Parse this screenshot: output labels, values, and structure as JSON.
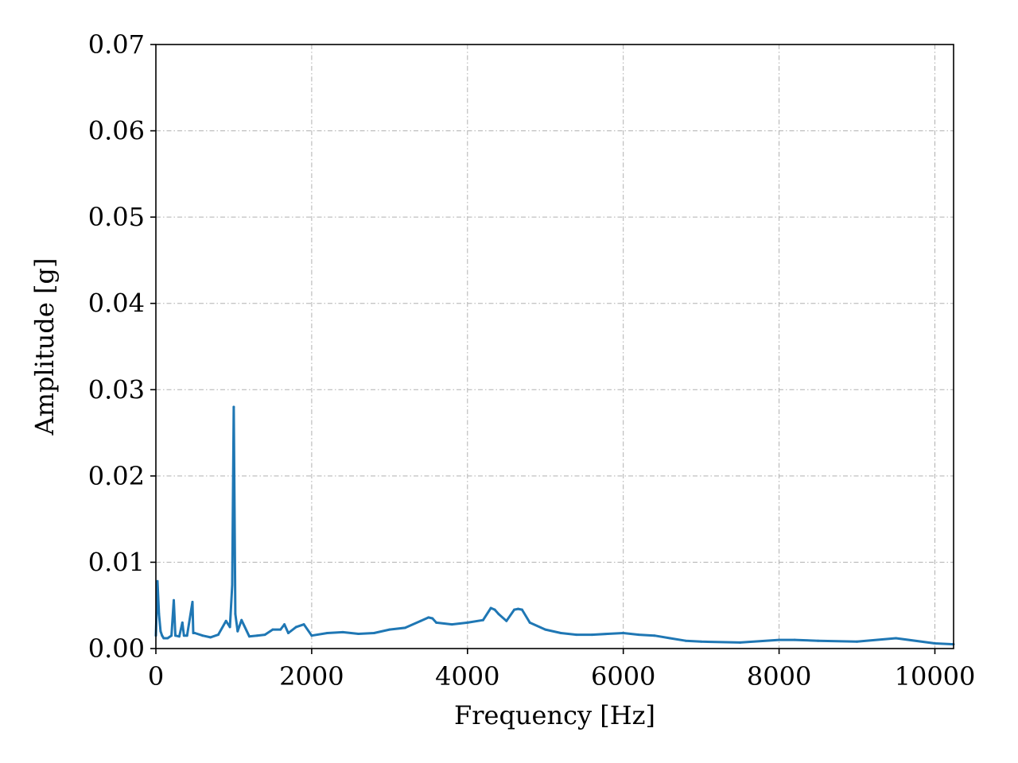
{
  "chart_data": {
    "type": "line",
    "title": "",
    "xlabel": "Frequency [Hz]",
    "ylabel": "Amplitude [g]",
    "xlim": [
      0,
      10240
    ],
    "ylim": [
      0,
      0.07
    ],
    "x_ticks": [
      0,
      2000,
      4000,
      6000,
      8000,
      10000
    ],
    "x_tick_labels": [
      "0",
      "2000",
      "4000",
      "6000",
      "8000",
      "10000"
    ],
    "y_ticks": [
      0,
      0.01,
      0.02,
      0.03,
      0.04,
      0.05,
      0.06,
      0.07
    ],
    "y_tick_labels": [
      "0.00",
      "0.01",
      "0.02",
      "0.03",
      "0.04",
      "0.05",
      "0.06",
      "0.07"
    ],
    "grid": true,
    "legend": "none",
    "colors": {
      "series": "#1f77b4",
      "grid": "#b0b0b0",
      "axes": "#000000"
    },
    "series": [
      {
        "name": "",
        "x": [
          0,
          20,
          40,
          60,
          80,
          100,
          150,
          200,
          230,
          250,
          300,
          340,
          360,
          400,
          470,
          480,
          500,
          600,
          700,
          800,
          900,
          950,
          980,
          1000,
          1020,
          1050,
          1100,
          1200,
          1300,
          1400,
          1500,
          1600,
          1650,
          1700,
          1800,
          1900,
          2000,
          2200,
          2400,
          2600,
          2800,
          3000,
          3200,
          3400,
          3500,
          3550,
          3600,
          3800,
          4000,
          4200,
          4300,
          4350,
          4400,
          4500,
          4600,
          4650,
          4700,
          4800,
          5000,
          5200,
          5400,
          5600,
          5800,
          6000,
          6200,
          6400,
          6600,
          6800,
          7000,
          7500,
          8000,
          8200,
          8500,
          9000,
          9500,
          10000,
          10240
        ],
        "y": [
          0.0015,
          0.0078,
          0.004,
          0.002,
          0.0015,
          0.0012,
          0.0012,
          0.0015,
          0.0056,
          0.0015,
          0.0014,
          0.003,
          0.0015,
          0.0015,
          0.0054,
          0.0018,
          0.0018,
          0.0015,
          0.0013,
          0.0016,
          0.0032,
          0.0025,
          0.0074,
          0.028,
          0.004,
          0.002,
          0.0033,
          0.0014,
          0.0015,
          0.0016,
          0.0022,
          0.0022,
          0.0028,
          0.0018,
          0.0025,
          0.0028,
          0.0015,
          0.0018,
          0.0019,
          0.0017,
          0.0018,
          0.0022,
          0.0024,
          0.0032,
          0.0036,
          0.0035,
          0.003,
          0.0028,
          0.003,
          0.0033,
          0.0047,
          0.0045,
          0.004,
          0.0032,
          0.0045,
          0.0046,
          0.0045,
          0.003,
          0.0022,
          0.0018,
          0.0016,
          0.0016,
          0.0017,
          0.0018,
          0.0016,
          0.0015,
          0.0012,
          0.0009,
          0.0008,
          0.0007,
          0.001,
          0.001,
          0.0009,
          0.0008,
          0.0012,
          0.0006,
          0.0005
        ]
      }
    ]
  }
}
